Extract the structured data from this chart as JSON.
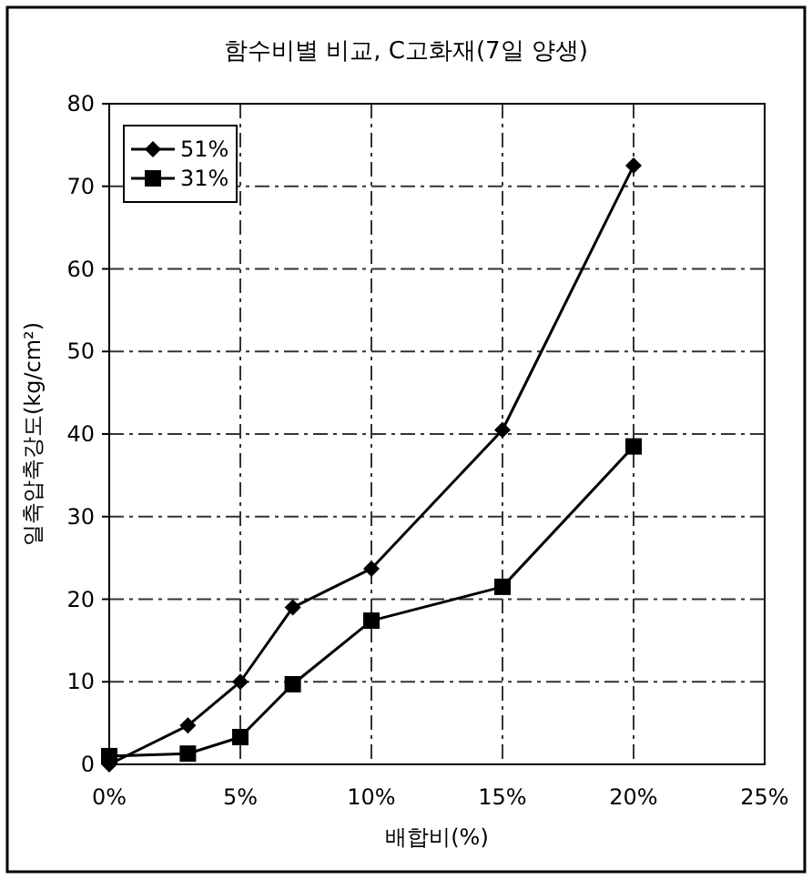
{
  "chart_data": {
    "type": "line",
    "title": "함수비별 비교, C고화재(7일 양생)",
    "xlabel": "배합비(%)",
    "ylabel": "일축압축강도(kg/cm²)",
    "x": [
      0,
      3,
      5,
      7,
      10,
      15,
      20
    ],
    "series": [
      {
        "name": "51%",
        "color": "#000000",
        "marker": "diamond",
        "values": [
          0,
          4.7,
          10,
          19,
          23.7,
          40.5,
          72.5
        ]
      },
      {
        "name": "31%",
        "color": "#000000",
        "marker": "square",
        "values": [
          1,
          1.3,
          3.3,
          9.7,
          17.4,
          21.5,
          38.5
        ]
      }
    ],
    "xlim": [
      0,
      25
    ],
    "xticks": [
      {
        "value": 0,
        "label": "0%"
      },
      {
        "value": 5,
        "label": "5%"
      },
      {
        "value": 10,
        "label": "10%"
      },
      {
        "value": 15,
        "label": "15%"
      },
      {
        "value": 20,
        "label": "20%"
      },
      {
        "value": 25,
        "label": "25%"
      }
    ],
    "ylim": [
      0,
      80
    ],
    "yticks": [
      0,
      10,
      20,
      30,
      40,
      50,
      60,
      70,
      80
    ],
    "grid": true,
    "legend": "top left",
    "line_style": "solid"
  }
}
